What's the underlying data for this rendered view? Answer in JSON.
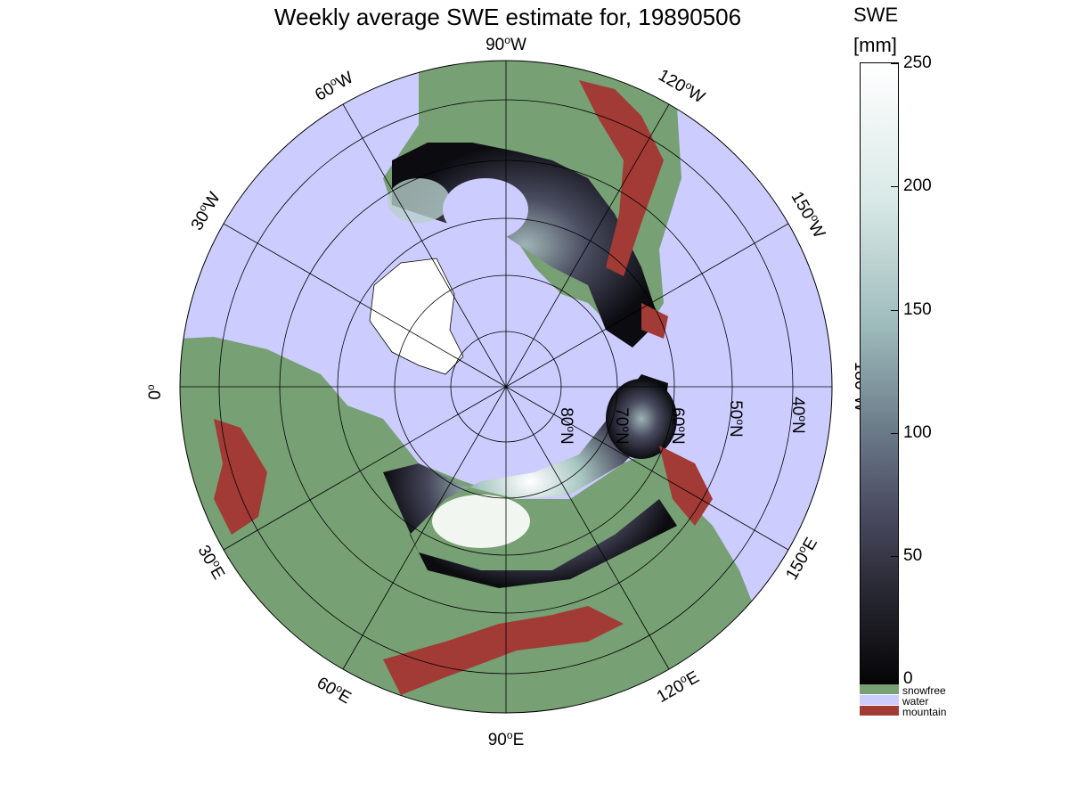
{
  "title": "Weekly average SWE estimate for, 19890506",
  "colorbar": {
    "title_line1": "SWE",
    "title_line2": "[mm]",
    "ticks": [
      "250",
      "200",
      "150",
      "100",
      "50",
      "0"
    ],
    "range": [
      0,
      250
    ]
  },
  "legend": [
    {
      "label": "snowfree",
      "color": "#77a074"
    },
    {
      "label": "water",
      "color": "#ccccff"
    },
    {
      "label": "mountain",
      "color": "#a23a35"
    }
  ],
  "longitude_labels": [
    {
      "base": "90",
      "sup": "o",
      "dir": "W"
    },
    {
      "base": "120",
      "sup": "o",
      "dir": "W"
    },
    {
      "base": "150",
      "sup": "o",
      "dir": "W"
    },
    {
      "base": "180",
      "sup": "o",
      "dir": "W"
    },
    {
      "base": "150",
      "sup": "o",
      "dir": "E"
    },
    {
      "base": "120",
      "sup": "o",
      "dir": "E"
    },
    {
      "base": "90",
      "sup": "o",
      "dir": "E"
    },
    {
      "base": "60",
      "sup": "o",
      "dir": "E"
    },
    {
      "base": "30",
      "sup": "o",
      "dir": "E"
    },
    {
      "base": "0",
      "sup": "o",
      "dir": ""
    },
    {
      "base": "30",
      "sup": "o",
      "dir": "W"
    },
    {
      "base": "60",
      "sup": "o",
      "dir": "W"
    }
  ],
  "latitude_labels": [
    {
      "base": "80",
      "sup": "o",
      "dir": "N"
    },
    {
      "base": "70",
      "sup": "o",
      "dir": "N"
    },
    {
      "base": "60",
      "sup": "o",
      "dir": "N"
    },
    {
      "base": "50",
      "sup": "o",
      "dir": "N"
    },
    {
      "base": "40",
      "sup": "o",
      "dir": "N"
    }
  ],
  "colors": {
    "water": "#ccccff",
    "snowfree": "#77a074",
    "mountain": "#a23a35",
    "swe_low": "#050507",
    "swe_mid": "#6e7f8c",
    "swe_high": "#ffffff"
  }
}
